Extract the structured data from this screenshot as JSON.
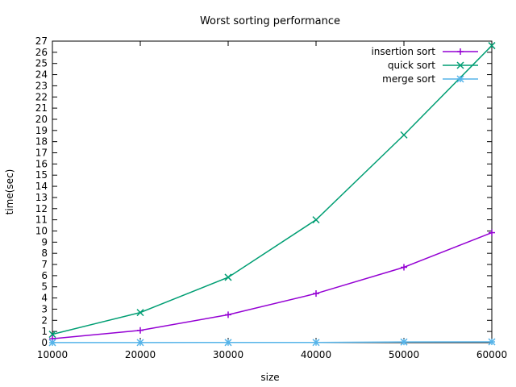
{
  "chart_data": {
    "type": "line",
    "title": "Worst sorting performance",
    "xlabel": "size",
    "ylabel": "time(sec)",
    "xlim": [
      10000,
      60000
    ],
    "ylim": [
      0,
      27
    ],
    "xticks": [
      "10000",
      "20000",
      "30000",
      "40000",
      "50000",
      "60000"
    ],
    "yticks": [
      "0",
      "1",
      "2",
      "3",
      "4",
      "5",
      "6",
      "7",
      "8",
      "9",
      "10",
      "11",
      "12",
      "13",
      "14",
      "15",
      "16",
      "17",
      "18",
      "19",
      "20",
      "21",
      "22",
      "23",
      "24",
      "25",
      "26",
      "27"
    ],
    "legend_position": "top-right",
    "grid": false,
    "x": [
      10000,
      20000,
      30000,
      40000,
      50000,
      60000
    ],
    "series": [
      {
        "name": "insertion sort",
        "color": "#9400d3",
        "marker": "plus",
        "values": [
          0.35,
          1.1,
          2.5,
          4.4,
          6.75,
          9.85
        ]
      },
      {
        "name": "quick sort",
        "color": "#009e73",
        "marker": "cross",
        "values": [
          0.75,
          2.7,
          5.85,
          11.0,
          18.6,
          26.6
        ]
      },
      {
        "name": "merge sort",
        "color": "#56b4e9",
        "marker": "star",
        "values": [
          0.005,
          0.01,
          0.015,
          0.02,
          0.06,
          0.07
        ]
      }
    ]
  }
}
